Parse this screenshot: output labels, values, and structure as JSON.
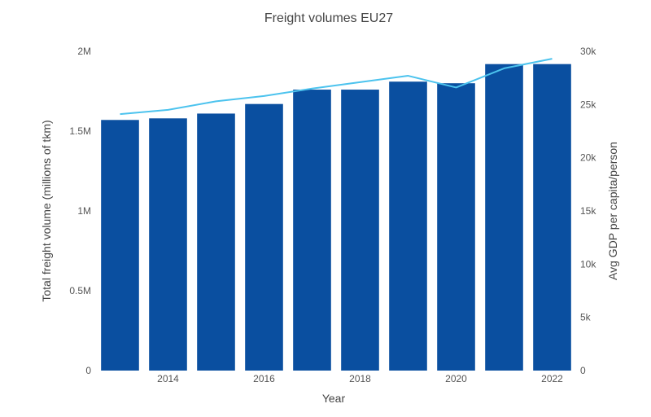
{
  "chart_data": {
    "type": "bar",
    "title": "Freight volumes EU27",
    "xlabel": "Year",
    "ylabel": "Total freight volume (millions of tkm)",
    "y2label": "Avg GDP per capita/person",
    "x": [
      2013,
      2014,
      2015,
      2016,
      2017,
      2018,
      2019,
      2020,
      2021,
      2022
    ],
    "x_tick_labels": [
      "2014",
      "2016",
      "2018",
      "2020",
      "2022"
    ],
    "x_tick_values": [
      2014,
      2016,
      2018,
      2020,
      2022
    ],
    "ylim": [
      0,
      2000000
    ],
    "y_ticks": [
      0,
      500000,
      1000000,
      1500000,
      2000000
    ],
    "y_tick_labels": [
      "0",
      "0.5M",
      "1M",
      "1.5M",
      "2M"
    ],
    "y2lim": [
      0,
      30000
    ],
    "y2_ticks": [
      0,
      5000,
      10000,
      15000,
      20000,
      25000,
      30000
    ],
    "y2_tick_labels": [
      "0",
      "5k",
      "10k",
      "15k",
      "20k",
      "25k",
      "30k"
    ],
    "series": [
      {
        "type": "bar",
        "axis": "left",
        "color": "#0a4fa0",
        "values": [
          1570000,
          1580000,
          1610000,
          1670000,
          1760000,
          1760000,
          1810000,
          1800000,
          1920000,
          1920000
        ]
      },
      {
        "type": "line",
        "axis": "right",
        "color": "#4cc3ee",
        "values": [
          24100,
          24500,
          25300,
          25800,
          26500,
          27100,
          27700,
          26600,
          28400,
          29300
        ]
      }
    ],
    "grid": false,
    "legend": "none"
  }
}
